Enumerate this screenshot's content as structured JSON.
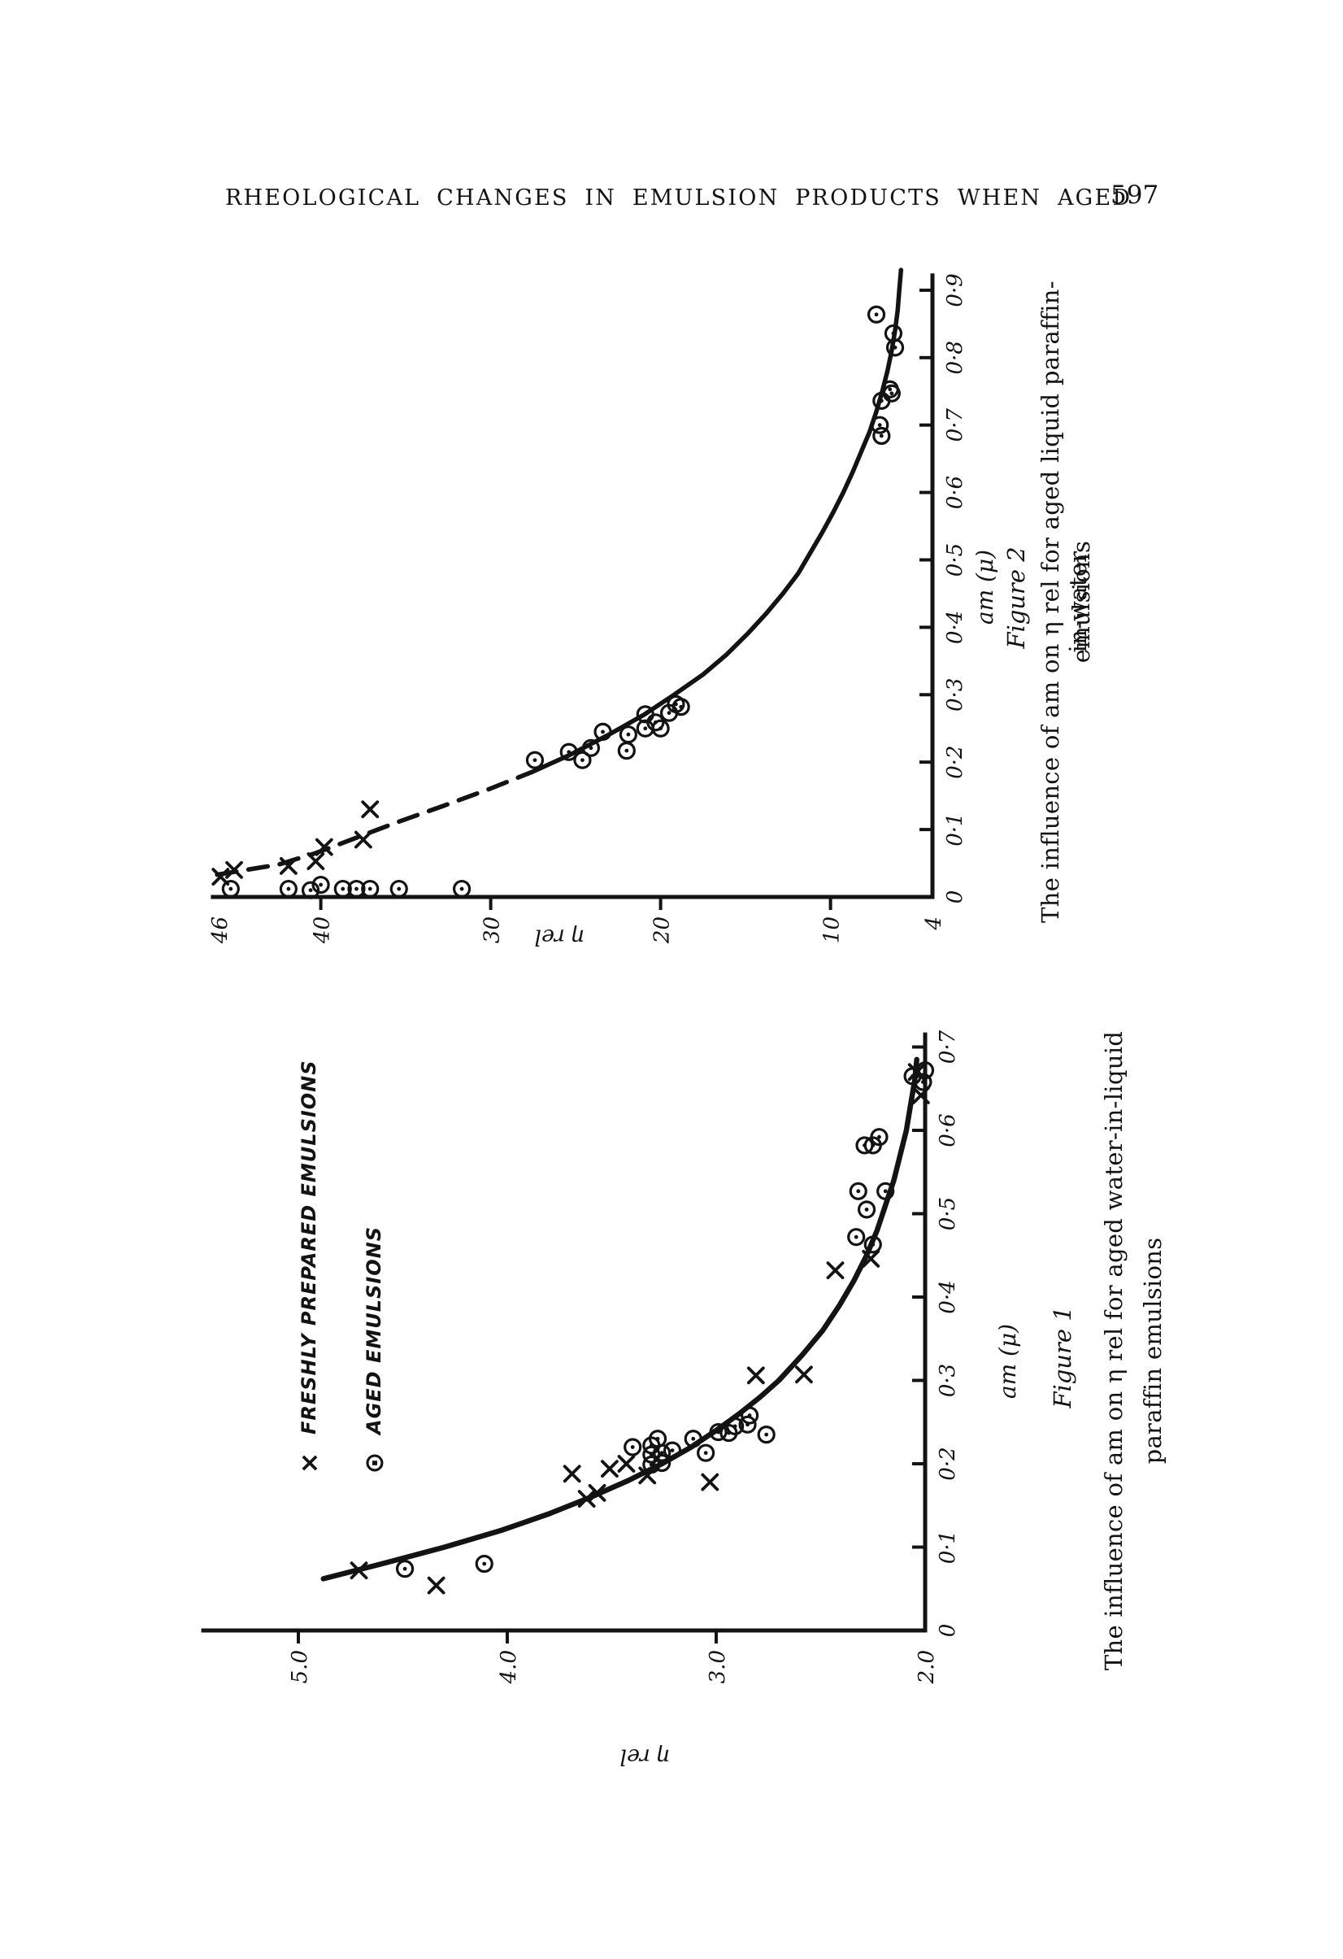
{
  "header": {
    "title": "RHEOLOGICAL CHANGES IN EMULSION PRODUCTS WHEN AGED",
    "page_number": "597"
  },
  "figure2": {
    "figure_label": "Figure 2",
    "caption_line1": "The influence of am on η rel for aged liquid paraffin-in-water",
    "caption_line2": "emulsions",
    "x_axis_label": "am (μ)",
    "y_axis_label": "η rel",
    "chart_data": {
      "type": "scatter",
      "title": "Figure 2",
      "xlabel": "am (μ)",
      "ylabel": "η rel",
      "xlim": [
        0,
        0.922
      ],
      "ylim": [
        4,
        46.35
      ],
      "grid": false,
      "x_ticks": [
        {
          "v": 0,
          "label": "0",
          "tick": false
        },
        {
          "v": 0.1,
          "label": "0·1"
        },
        {
          "v": 0.2,
          "label": "0·2"
        },
        {
          "v": 0.3,
          "label": "0·3"
        },
        {
          "v": 0.4,
          "label": "0·4"
        },
        {
          "v": 0.5,
          "label": "0·5"
        },
        {
          "v": 0.6,
          "label": "0·6"
        },
        {
          "v": 0.7,
          "label": "0·7"
        },
        {
          "v": 0.8,
          "label": "0·8"
        },
        {
          "v": 0.9,
          "label": "0·9"
        }
      ],
      "y_ticks": [
        {
          "v": 4,
          "label": "4",
          "tick": false
        },
        {
          "v": 10,
          "label": "10"
        },
        {
          "v": 20,
          "label": "20"
        },
        {
          "v": 30,
          "label": "30"
        },
        {
          "v": 40,
          "label": "40"
        },
        {
          "v": 46,
          "label": "46",
          "tick": false
        }
      ],
      "curves": [
        {
          "style": "dashed",
          "points": [
            [
              0.033,
              46.1
            ],
            [
              0.048,
              42.5
            ],
            [
              0.065,
              40.3
            ],
            [
              0.085,
              38.2
            ],
            [
              0.11,
              35.6
            ],
            [
              0.135,
              32.8
            ],
            [
              0.16,
              30.1
            ],
            [
              0.185,
              27.6
            ]
          ]
        },
        {
          "style": "solid",
          "points": [
            [
              0.185,
              27.6
            ],
            [
              0.21,
              25.4
            ],
            [
              0.24,
              23.1
            ],
            [
              0.27,
              21.0
            ],
            [
              0.3,
              19.2
            ],
            [
              0.33,
              17.5
            ],
            [
              0.36,
              16.1
            ],
            [
              0.39,
              14.9
            ],
            [
              0.42,
              13.8
            ],
            [
              0.45,
              12.8
            ],
            [
              0.48,
              11.9
            ],
            [
              0.51,
              11.2
            ],
            [
              0.54,
              10.5
            ],
            [
              0.57,
              9.85
            ],
            [
              0.6,
              9.25
            ],
            [
              0.63,
              8.7
            ],
            [
              0.66,
              8.2
            ],
            [
              0.69,
              7.7
            ],
            [
              0.72,
              7.3
            ],
            [
              0.75,
              6.95
            ],
            [
              0.78,
              6.65
            ],
            [
              0.81,
              6.4
            ],
            [
              0.84,
              6.2
            ],
            [
              0.87,
              6.05
            ],
            [
              0.9,
              5.95
            ],
            [
              0.93,
              5.85
            ]
          ]
        }
      ],
      "series": [
        {
          "name": "freshly prepared emulsions",
          "marker": "x",
          "points": [
            [
              0.03,
              45.9
            ],
            [
              0.04,
              45.1
            ],
            [
              0.046,
              41.9
            ],
            [
              0.053,
              40.3
            ],
            [
              0.074,
              39.8
            ],
            [
              0.085,
              37.5
            ],
            [
              0.13,
              37.1
            ]
          ]
        },
        {
          "name": "aged emulsions",
          "marker": "circle-dot",
          "points": [
            [
              0.012,
              45.3
            ],
            [
              0.012,
              41.9
            ],
            [
              0.01,
              40.6
            ],
            [
              0.018,
              40.0
            ],
            [
              0.012,
              38.7
            ],
            [
              0.012,
              37.9
            ],
            [
              0.012,
              37.1
            ],
            [
              0.012,
              35.4
            ],
            [
              0.012,
              31.7
            ],
            [
              0.203,
              27.4
            ],
            [
              0.215,
              25.4
            ],
            [
              0.203,
              24.6
            ],
            [
              0.221,
              24.1
            ],
            [
              0.245,
              23.4
            ],
            [
              0.217,
              22.0
            ],
            [
              0.241,
              21.9
            ],
            [
              0.25,
              20.9
            ],
            [
              0.271,
              20.9
            ],
            [
              0.259,
              20.3
            ],
            [
              0.25,
              20.0
            ],
            [
              0.273,
              19.5
            ],
            [
              0.286,
              19.1
            ],
            [
              0.282,
              18.8
            ],
            [
              0.684,
              7.0
            ],
            [
              0.7,
              7.1
            ],
            [
              0.736,
              7.0
            ],
            [
              0.747,
              6.4
            ],
            [
              0.753,
              6.5
            ],
            [
              0.815,
              6.2
            ],
            [
              0.836,
              6.3
            ],
            [
              0.864,
              7.3
            ]
          ]
        }
      ]
    }
  },
  "figure1": {
    "figure_label": "Figure 1",
    "caption_line1": "The influence of am on η rel for aged water-in-liquid",
    "caption_line2": "paraffin emulsions",
    "x_axis_label": "am (μ)",
    "y_axis_label": "η rel",
    "legend": {
      "items": [
        {
          "glyph": "×",
          "label": "FRESHLY PREPARED EMULSIONS"
        },
        {
          "glyph": "⊙",
          "label": "AGED EMULSIONS"
        }
      ]
    },
    "chart_data": {
      "type": "scatter",
      "title": "Figure 1",
      "xlabel": "am (μ)",
      "ylabel": "η rel",
      "xlim": [
        0,
        0.715
      ],
      "ylim": [
        2,
        5.455
      ],
      "grid": false,
      "x_ticks": [
        {
          "v": 0,
          "label": "0",
          "tick": false
        },
        {
          "v": 0.1,
          "label": "0·1"
        },
        {
          "v": 0.2,
          "label": "0·2"
        },
        {
          "v": 0.3,
          "label": "0·3"
        },
        {
          "v": 0.4,
          "label": "0·4"
        },
        {
          "v": 0.5,
          "label": "0·5"
        },
        {
          "v": 0.6,
          "label": "0·6"
        },
        {
          "v": 0.7,
          "label": "0·7"
        }
      ],
      "y_ticks": [
        {
          "v": 2,
          "label": "2.0",
          "tick": false
        },
        {
          "v": 3,
          "label": "3.0"
        },
        {
          "v": 4,
          "label": "4.0"
        },
        {
          "v": 5,
          "label": "5.0"
        }
      ],
      "curves": [
        {
          "style": "solid",
          "points": [
            [
              0.062,
              4.88
            ],
            [
              0.08,
              4.6
            ],
            [
              0.1,
              4.3
            ],
            [
              0.12,
              4.03
            ],
            [
              0.14,
              3.8
            ],
            [
              0.16,
              3.6
            ],
            [
              0.18,
              3.42
            ],
            [
              0.2,
              3.26
            ],
            [
              0.22,
              3.12
            ],
            [
              0.24,
              3.0
            ],
            [
              0.26,
              2.89
            ],
            [
              0.28,
              2.79
            ],
            [
              0.3,
              2.7
            ],
            [
              0.33,
              2.59
            ],
            [
              0.36,
              2.49
            ],
            [
              0.39,
              2.41
            ],
            [
              0.42,
              2.34
            ],
            [
              0.45,
              2.28
            ],
            [
              0.48,
              2.23
            ],
            [
              0.51,
              2.19
            ],
            [
              0.54,
              2.15
            ],
            [
              0.57,
              2.12
            ],
            [
              0.6,
              2.09
            ],
            [
              0.63,
              2.07
            ],
            [
              0.66,
              2.05
            ],
            [
              0.685,
              2.04
            ]
          ]
        }
      ],
      "series": [
        {
          "name": "freshly prepared emulsions",
          "marker": "x",
          "points": [
            [
              0.054,
              4.34
            ],
            [
              0.072,
              4.71
            ],
            [
              0.158,
              3.62
            ],
            [
              0.165,
              3.57
            ],
            [
              0.188,
              3.69
            ],
            [
              0.194,
              3.51
            ],
            [
              0.2,
              3.43
            ],
            [
              0.186,
              3.33
            ],
            [
              0.178,
              3.03
            ],
            [
              0.306,
              2.81
            ],
            [
              0.307,
              2.58
            ],
            [
              0.432,
              2.43
            ],
            [
              0.446,
              2.26
            ],
            [
              0.642,
              2.02
            ],
            [
              0.67,
              2.04
            ]
          ]
        },
        {
          "name": "aged emulsions",
          "marker": "circle-dot",
          "points": [
            [
              0.074,
              4.49
            ],
            [
              0.08,
              4.11
            ],
            [
              0.199,
              3.31
            ],
            [
              0.201,
              3.26
            ],
            [
              0.211,
              3.31
            ],
            [
              0.213,
              3.26
            ],
            [
              0.216,
              3.21
            ],
            [
              0.22,
              3.4
            ],
            [
              0.222,
              3.31
            ],
            [
              0.23,
              3.28
            ],
            [
              0.23,
              3.11
            ],
            [
              0.213,
              3.05
            ],
            [
              0.235,
              2.76
            ],
            [
              0.237,
              2.94
            ],
            [
              0.238,
              2.99
            ],
            [
              0.245,
              2.91
            ],
            [
              0.247,
              2.85
            ],
            [
              0.258,
              2.84
            ],
            [
              0.463,
              2.25
            ],
            [
              0.472,
              2.33
            ],
            [
              0.505,
              2.28
            ],
            [
              0.527,
              2.32
            ],
            [
              0.527,
              2.19
            ],
            [
              0.582,
              2.29
            ],
            [
              0.582,
              2.25
            ],
            [
              0.592,
              2.22
            ],
            [
              0.658,
              2.01
            ],
            [
              0.665,
              2.06
            ],
            [
              0.672,
              2.0
            ]
          ]
        }
      ]
    }
  }
}
